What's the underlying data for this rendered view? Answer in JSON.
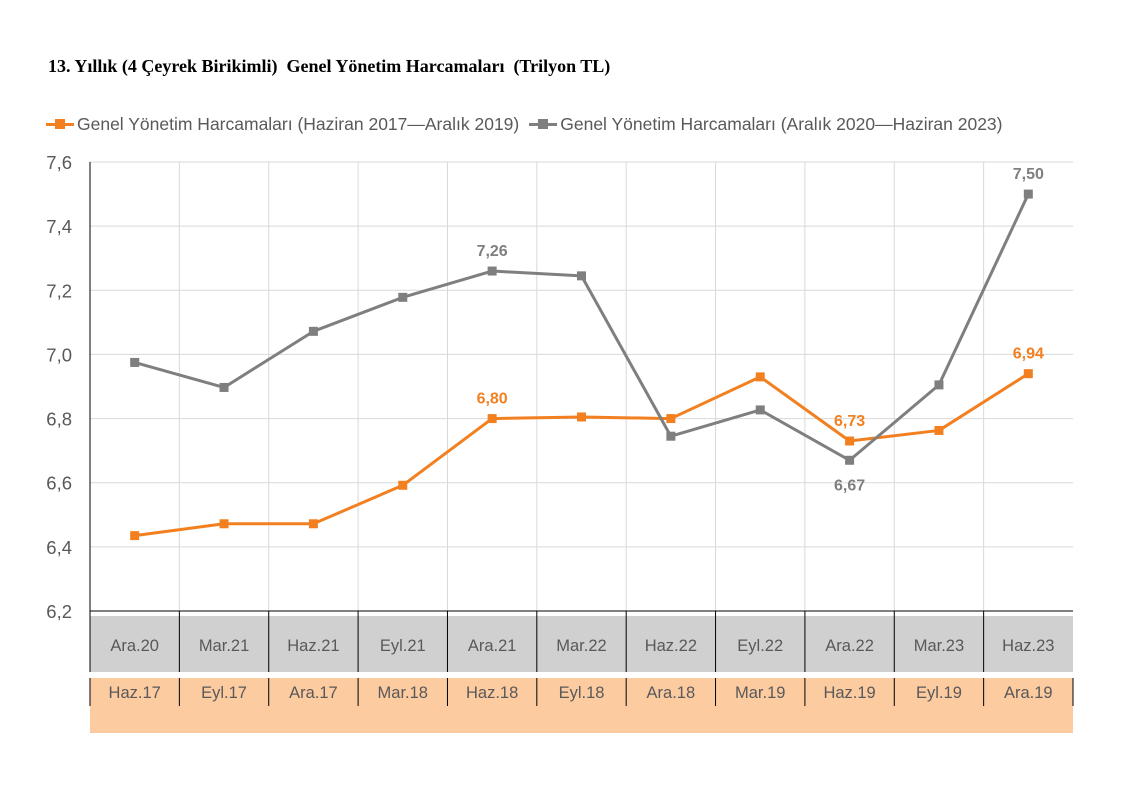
{
  "title": "13. Yıllık (4 Çeyrek Birikimli)  Genel Yönetim Harcamaları  (Trilyon TL)",
  "colors": {
    "orange": "#F28020",
    "gray": "#7F7F7F",
    "grid": "#D9D9D9",
    "axis": "#000000",
    "band_gray": "#D0D0D0",
    "band_orange": "#FDCBA0",
    "label_text": "#595959"
  },
  "chart_data": {
    "type": "line",
    "ylim": [
      6.2,
      7.6
    ],
    "y_ticks": [
      "6,2",
      "6,4",
      "6,6",
      "6,8",
      "7,0",
      "7,2",
      "7,4",
      "7,6"
    ],
    "grid": true,
    "legend_position": "top",
    "categories_top": [
      "Ara.20",
      "Mar.21",
      "Haz.21",
      "Eyl.21",
      "Ara.21",
      "Mar.22",
      "Haz.22",
      "Eyl.22",
      "Ara.22",
      "Mar.23",
      "Haz.23"
    ],
    "categories_bottom": [
      "Haz.17",
      "Eyl.17",
      "Ara.17",
      "Mar.18",
      "Haz.18",
      "Eyl.18",
      "Ara.18",
      "Mar.19",
      "Haz.19",
      "Eyl.19",
      "Ara.19"
    ],
    "series": [
      {
        "name": "Genel Yönetim Harcamaları (Haziran 2017—Aralık 2019)",
        "color": "#F28020",
        "values": [
          6.435,
          6.472,
          6.472,
          6.592,
          6.8,
          6.805,
          6.8,
          6.93,
          6.73,
          6.763,
          6.94
        ],
        "labels": [
          null,
          null,
          null,
          null,
          "6,80",
          null,
          null,
          null,
          "6,73",
          null,
          "6,94"
        ],
        "label_side": "above"
      },
      {
        "name": "Genel Yönetim Harcamaları (Aralık 2020—Haziran 2023)",
        "color": "#7F7F7F",
        "values": [
          6.975,
          6.897,
          7.072,
          7.178,
          7.26,
          7.245,
          6.745,
          6.827,
          6.67,
          6.905,
          7.5
        ],
        "labels": [
          null,
          null,
          null,
          null,
          "7,26",
          null,
          null,
          null,
          "6,67",
          null,
          "7,50"
        ],
        "label_side": [
          "above",
          null,
          null,
          null,
          "above",
          null,
          null,
          null,
          "below",
          null,
          "above"
        ]
      }
    ]
  }
}
